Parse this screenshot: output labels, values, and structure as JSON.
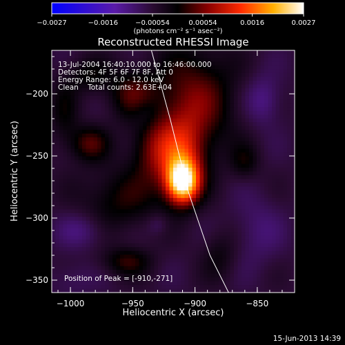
{
  "chart_data": {
    "type": "heatmap",
    "title": "Reconstructed RHESSI Image",
    "xlabel": "Heliocentric X (arcsec)",
    "ylabel": "Heliocentric Y (arcsec)",
    "xlim": [
      -1015,
      -820
    ],
    "ylim": [
      -360,
      -165
    ],
    "x_ticks": [
      -1000,
      -950,
      -900,
      -850
    ],
    "x_tick_labels": [
      "−1000",
      "−950",
      "−900",
      "−850"
    ],
    "y_ticks": [
      -200,
      -250,
      -300,
      -350
    ],
    "y_tick_labels": [
      "−200",
      "−250",
      "−300",
      "−350"
    ],
    "colorbar": {
      "range": [
        -0.0027,
        0.0027
      ],
      "tick_values": [
        -0.0027,
        -0.0016,
        -0.00054,
        0.00054,
        0.0016,
        0.0027
      ],
      "tick_labels": [
        "−0.0027",
        "−0.0016",
        "−0.00054",
        "0.00054",
        "0.0016",
        "0.0027"
      ],
      "units": "(photons cm⁻² s⁻¹ asec⁻²)"
    },
    "annotations": {
      "time_range": "13-Jul-2004 16:40:10.000 to 16:46:00.000",
      "detectors": "Detectors: 4F 5F 6F 7F 8F, Att 0",
      "energy_range": "Energy Range: 6.0 - 12.0 keV",
      "clean_counts": "Clean    Total counts: 2.63E+04",
      "peak_position": "Position of Peak = [-910,-271]"
    },
    "peak": {
      "x": -910,
      "y": -271
    },
    "limb_curve": [
      [
        -935,
        -165
      ],
      [
        -920,
        -220
      ],
      [
        -905,
        -280
      ],
      [
        -888,
        -330
      ],
      [
        -873,
        -360
      ]
    ],
    "blobs": [
      {
        "x": -910,
        "y": -271,
        "sx": 9,
        "sy": 12,
        "amp": 1.55
      },
      {
        "x": -912,
        "y": -250,
        "sx": 14,
        "sy": 22,
        "amp": 0.75
      },
      {
        "x": -900,
        "y": -205,
        "sx": 22,
        "sy": 30,
        "amp": 0.55
      },
      {
        "x": -950,
        "y": -200,
        "sx": 14,
        "sy": 14,
        "amp": 0.45
      },
      {
        "x": -935,
        "y": -245,
        "sx": 12,
        "sy": 18,
        "amp": 0.4
      },
      {
        "x": -985,
        "y": -240,
        "sx": 11,
        "sy": 10,
        "amp": 0.45
      },
      {
        "x": -960,
        "y": -285,
        "sx": 22,
        "sy": 18,
        "amp": 0.35
      },
      {
        "x": -955,
        "y": -335,
        "sx": 14,
        "sy": 8,
        "amp": 0.38
      },
      {
        "x": -985,
        "y": -185,
        "sx": 12,
        "sy": 10,
        "amp": 0.28
      },
      {
        "x": -1005,
        "y": -215,
        "sx": 8,
        "sy": 20,
        "amp": 0.25
      },
      {
        "x": -880,
        "y": -330,
        "sx": 10,
        "sy": 14,
        "amp": 0.22
      },
      {
        "x": -860,
        "y": -255,
        "sx": 8,
        "sy": 10,
        "amp": 0.28
      },
      {
        "x": -845,
        "y": -205,
        "sx": 10,
        "sy": 14,
        "amp": -0.3
      },
      {
        "x": -940,
        "y": -215,
        "sx": 8,
        "sy": 10,
        "amp": -0.2
      },
      {
        "x": -990,
        "y": -310,
        "sx": 14,
        "sy": 10,
        "amp": -0.25
      },
      {
        "x": -930,
        "y": -305,
        "sx": 6,
        "sy": 6,
        "amp": -0.18
      },
      {
        "x": -850,
        "y": -310,
        "sx": 14,
        "sy": 20,
        "amp": -0.2
      },
      {
        "x": -1000,
        "y": -350,
        "sx": 12,
        "sy": 10,
        "amp": -0.15
      }
    ],
    "grid": false
  },
  "footer": {
    "timestamp": "15-Jun-2013 14:39"
  }
}
